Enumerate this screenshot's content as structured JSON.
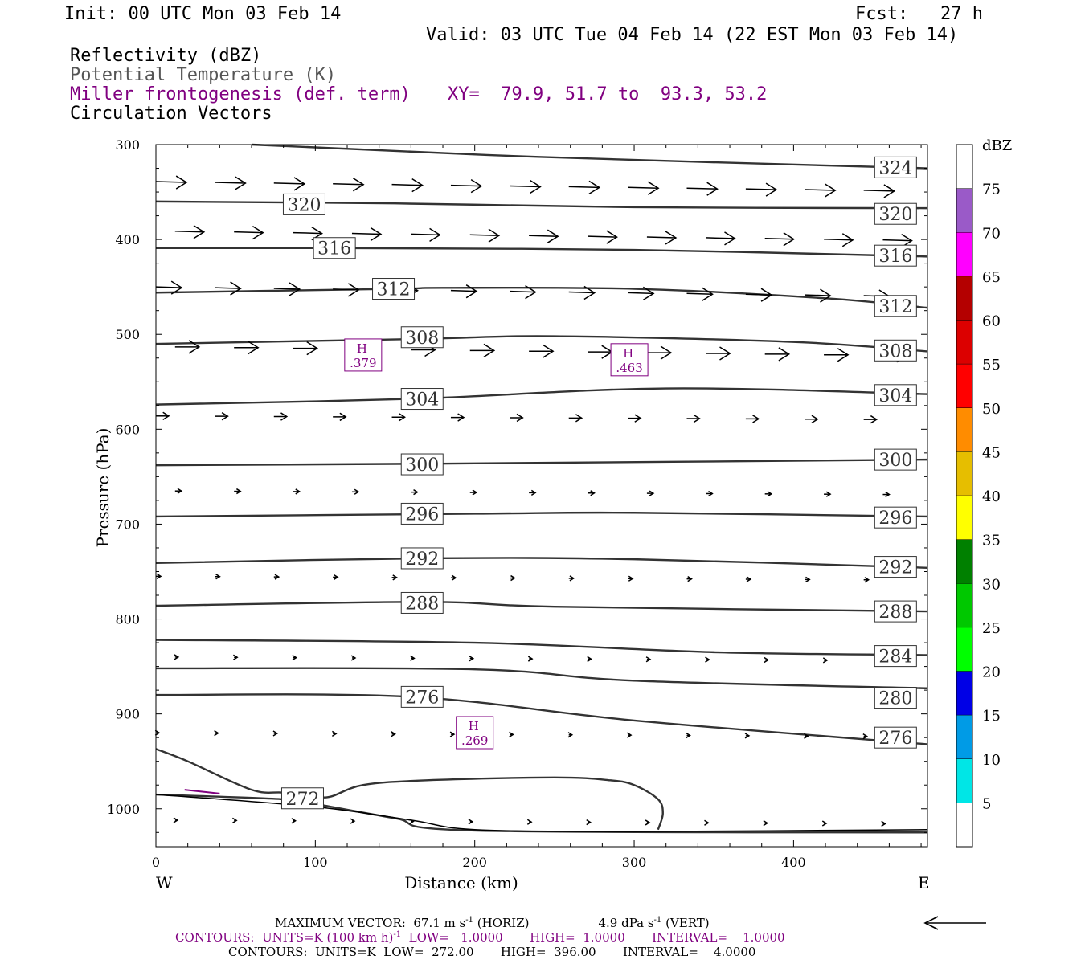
{
  "header": {
    "init": "Init: 00 UTC Mon 03 Feb 14",
    "fcst": "Fcst:   27 h",
    "valid": "Valid: 03 UTC Tue 04 Feb 14 (22 EST Mon 03 Feb 14)",
    "fields": [
      {
        "text": "Reflectivity (dBZ)",
        "color": "#000000"
      },
      {
        "text": "Potential Temperature (K)",
        "color": "#555555"
      },
      {
        "text": "Miller frontogenesis (def. term)",
        "color": "#800080"
      },
      {
        "text": "Circulation Vectors",
        "color": "#000000"
      }
    ],
    "xy": "XY=  79.9, 51.7 to  93.3, 53.2"
  },
  "chart_data": {
    "type": "cross-section",
    "xlabel": "Distance (km)",
    "ylabel": "Pressure (hPa)",
    "xlim": [
      0,
      484
    ],
    "ylim": [
      300,
      1040
    ],
    "x_ticks": [
      0,
      100,
      200,
      300,
      400
    ],
    "y_ticks": [
      300,
      400,
      500,
      600,
      700,
      800,
      900,
      1000
    ],
    "left_end_label": "W",
    "right_end_label": "E",
    "isentropes": [
      {
        "theta": "324",
        "points": [
          [
            60,
            300
          ],
          [
            240,
            313
          ],
          [
            484,
            325
          ]
        ],
        "labels": [
          [
            464,
            324
          ]
        ]
      },
      {
        "theta": "320",
        "points": [
          [
            0,
            360
          ],
          [
            150,
            362
          ],
          [
            300,
            366
          ],
          [
            484,
            367
          ]
        ],
        "labels": [
          [
            93,
            363
          ],
          [
            464,
            373
          ]
        ]
      },
      {
        "theta": "316",
        "points": [
          [
            0,
            409
          ],
          [
            110,
            409
          ],
          [
            300,
            411
          ],
          [
            484,
            418
          ]
        ],
        "labels": [
          [
            112,
            409
          ],
          [
            464,
            417
          ]
        ]
      },
      {
        "theta": "312",
        "points": [
          [
            0,
            456
          ],
          [
            150,
            452
          ],
          [
            180,
            451
          ],
          [
            300,
            452
          ],
          [
            420,
            462
          ],
          [
            484,
            472
          ]
        ],
        "labels": [
          [
            149,
            452
          ],
          [
            464,
            470
          ]
        ]
      },
      {
        "theta": "308",
        "points": [
          [
            0,
            510
          ],
          [
            160,
            505
          ],
          [
            250,
            502
          ],
          [
            400,
            508
          ],
          [
            484,
            518
          ]
        ],
        "labels": [
          [
            167,
            503
          ],
          [
            464,
            517
          ]
        ]
      },
      {
        "theta": "304",
        "points": [
          [
            0,
            574
          ],
          [
            160,
            568
          ],
          [
            320,
            557
          ],
          [
            484,
            563
          ]
        ],
        "labels": [
          [
            167,
            568
          ],
          [
            464,
            564
          ]
        ]
      },
      {
        "theta": "300",
        "points": [
          [
            0,
            638
          ],
          [
            200,
            636
          ],
          [
            484,
            632
          ]
        ],
        "labels": [
          [
            167,
            637
          ],
          [
            464,
            632
          ]
        ]
      },
      {
        "theta": "296",
        "points": [
          [
            0,
            692
          ],
          [
            200,
            689
          ],
          [
            300,
            688
          ],
          [
            484,
            692
          ]
        ],
        "labels": [
          [
            167,
            689
          ],
          [
            464,
            693
          ]
        ]
      },
      {
        "theta": "292",
        "points": [
          [
            0,
            741
          ],
          [
            170,
            736
          ],
          [
            300,
            737
          ],
          [
            484,
            746
          ]
        ],
        "labels": [
          [
            167,
            736
          ],
          [
            464,
            745
          ]
        ]
      },
      {
        "theta": "288",
        "points": [
          [
            0,
            786
          ],
          [
            170,
            782
          ],
          [
            250,
            787
          ],
          [
            484,
            792
          ]
        ],
        "labels": [
          [
            167,
            783
          ],
          [
            464,
            792
          ]
        ]
      },
      {
        "theta": "284",
        "points": [
          [
            0,
            822
          ],
          [
            200,
            825
          ],
          [
            350,
            835
          ],
          [
            484,
            838
          ]
        ],
        "labels": [
          [
            464,
            839
          ]
        ]
      },
      {
        "theta": "280",
        "points": [
          [
            0,
            852
          ],
          [
            200,
            853
          ],
          [
            300,
            865
          ],
          [
            484,
            873
          ]
        ],
        "labels": [
          [
            464,
            883
          ]
        ]
      },
      {
        "theta": "276",
        "points": [
          [
            0,
            880
          ],
          [
            160,
            882
          ],
          [
            300,
            907
          ],
          [
            484,
            932
          ]
        ],
        "labels": [
          [
            167,
            882
          ],
          [
            464,
            925
          ]
        ]
      },
      {
        "theta": "272",
        "points": [
          [
            0,
            985
          ],
          [
            80,
            990
          ],
          [
            100,
            995
          ],
          [
            150,
            1010
          ],
          [
            200,
            1023
          ],
          [
            484,
            1025
          ]
        ],
        "labels": [
          [
            92,
            989
          ]
        ]
      }
    ],
    "closed_contour": {
      "points": [
        [
          0,
          937
        ],
        [
          20,
          950
        ],
        [
          60,
          980
        ],
        [
          80,
          983
        ],
        [
          100,
          987
        ],
        [
          110,
          987
        ],
        [
          130,
          975
        ],
        [
          170,
          970
        ],
        [
          250,
          967
        ],
        [
          285,
          970
        ],
        [
          300,
          975
        ],
        [
          315,
          990
        ],
        [
          318,
          1005
        ],
        [
          315,
          1022
        ]
      ]
    },
    "terrain": [
      [
        0,
        985
      ],
      [
        100,
        998
      ],
      [
        160,
        1012
      ],
      [
        200,
        1022
      ],
      [
        300,
        1024
      ],
      [
        484,
        1022
      ]
    ],
    "frontogenesis_maxima": [
      {
        "label": "H",
        "value": ".379",
        "x": 130,
        "p": 526
      },
      {
        "label": "H",
        "value": ".463",
        "x": 297,
        "p": 531
      },
      {
        "label": "H",
        "value": ".269",
        "x": 200,
        "p": 924
      }
    ],
    "frontogenesis_contour": [
      [
        18,
        980
      ],
      [
        40,
        984
      ]
    ],
    "vector_rows": [
      {
        "p": 339,
        "len": 38
      },
      {
        "p": 391,
        "len": 36
      },
      {
        "p": 450,
        "len": 32
      },
      {
        "p": 513,
        "len": 30
      },
      {
        "p": 586,
        "len": 16
      },
      {
        "p": 665,
        "len": 8
      },
      {
        "p": 755,
        "len": 6
      },
      {
        "p": 840,
        "len": 4
      },
      {
        "p": 920,
        "len": 4
      },
      {
        "p": 1012,
        "len": 3
      }
    ],
    "colorbar": {
      "title": "dBZ",
      "labels": [
        "5",
        "10",
        "15",
        "20",
        "25",
        "30",
        "35",
        "40",
        "45",
        "50",
        "55",
        "60",
        "65",
        "70",
        "75"
      ],
      "colors": [
        "#00e6e6",
        "#009be6",
        "#0000e6",
        "#00ff00",
        "#00c800",
        "#008000",
        "#ffff00",
        "#e6be00",
        "#ff8c00",
        "#ff0000",
        "#dc0000",
        "#b40000",
        "#ff00ff",
        "#9a5ac8"
      ]
    }
  },
  "footer": {
    "line1_a": "MAXIMUM VECTOR:  67.1 m s",
    "line1_b": "-1",
    "line1_c": " (HORIZ)",
    "line1_d": "4.9 dPa s",
    "line1_e": "-1",
    "line1_f": " (VERT)",
    "line2_a": "CONTOURS:  UNITS=K (100 km h)",
    "line2_b": "-1",
    "line2_c": "  LOW=   1.0000       HIGH=  1.0000       INTERVAL=    1.0000",
    "line3": "CONTOURS:  UNITS=K  LOW=  272.00       HIGH=  396.00       INTERVAL=    4.0000"
  }
}
